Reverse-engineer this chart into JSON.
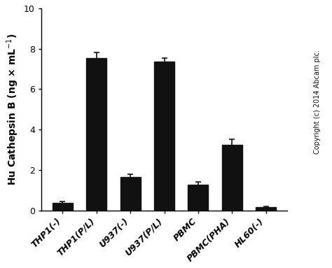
{
  "categories": [
    "THP1(-)",
    "THP1(P/L)",
    "U937(-)",
    "U937(P/L)",
    "PBMC",
    "PBMC(PHA)",
    "HL60(-)"
  ],
  "values": [
    0.35,
    7.55,
    1.65,
    7.35,
    1.28,
    3.25,
    0.15
  ],
  "errors": [
    0.08,
    0.28,
    0.12,
    0.18,
    0.12,
    0.28,
    0.05
  ],
  "bar_color": "#111111",
  "bar_edge_color": "#111111",
  "bar_width": 0.6,
  "ylim": [
    0,
    10
  ],
  "yticks": [
    0,
    2,
    4,
    6,
    8,
    10
  ],
  "copyright_text": "Copyright (c) 2014 Abcam plc.",
  "background_color": "#ffffff",
  "ylabel_fontsize": 10,
  "tick_fontsize": 9,
  "copyright_fontsize": 7,
  "error_capsize": 3,
  "error_linewidth": 1.2,
  "error_color": "#111111",
  "spine_linewidth": 1.0
}
